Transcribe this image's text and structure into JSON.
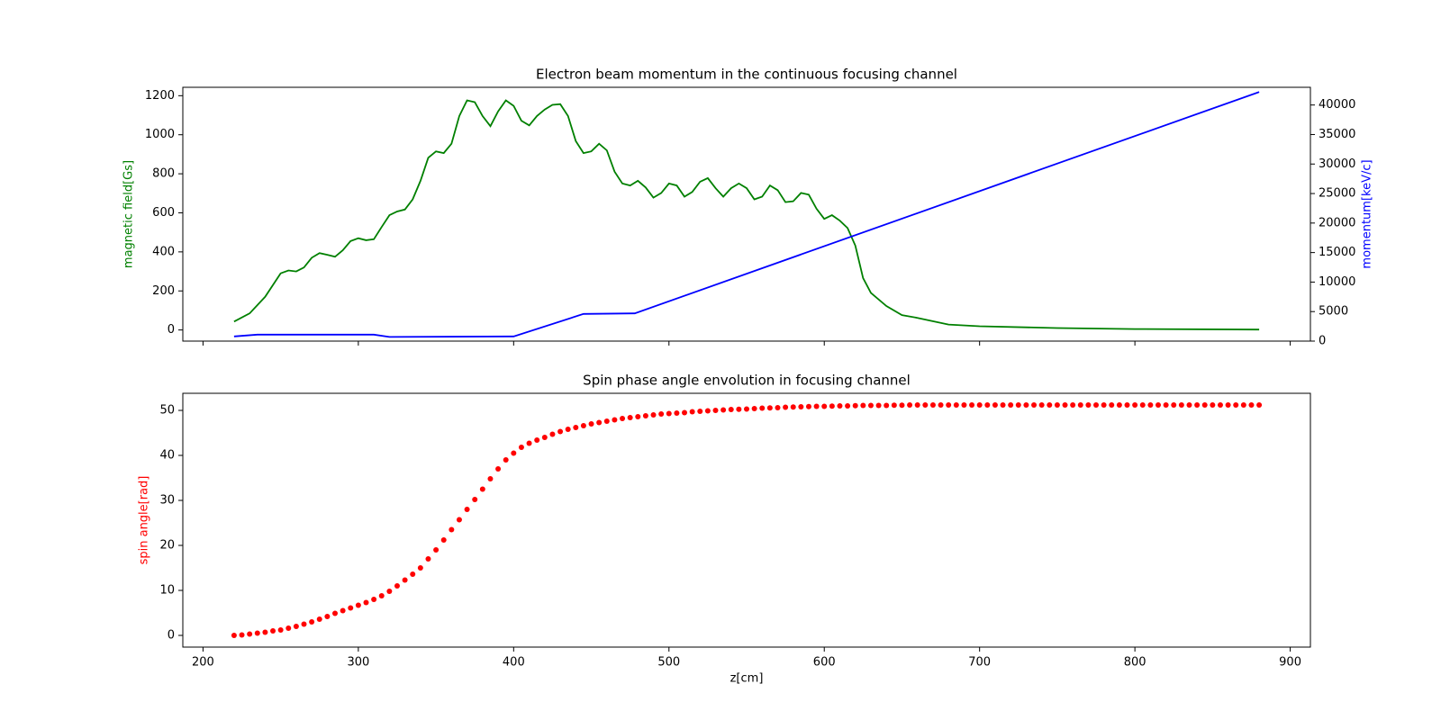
{
  "chart_data": [
    {
      "type": "line",
      "title": "Electron beam momentum in the continuous focusing channel",
      "ylabel": "magnetic field[Gs]",
      "ylabel_color": "green",
      "y2label": "momentum[keV/c]",
      "y2label_color": "blue",
      "xlim": [
        187,
        913
      ],
      "xticks": [
        200,
        300,
        400,
        500,
        600,
        700,
        800,
        900
      ],
      "show_xtick_labels": false,
      "ylim": [
        -57,
        1243
      ],
      "yticks": [
        0,
        200,
        400,
        600,
        800,
        1000,
        1200
      ],
      "y2lim": [
        0,
        43000
      ],
      "y2ticks": [
        0,
        5000,
        10000,
        15000,
        20000,
        25000,
        30000,
        35000,
        40000
      ],
      "series": [
        {
          "color": "green",
          "x": [
            220,
            230,
            240,
            250,
            255,
            260,
            265,
            270,
            275,
            280,
            285,
            290,
            295,
            300,
            305,
            310,
            315,
            320,
            325,
            330,
            335,
            340,
            345,
            350,
            355,
            360,
            365,
            370,
            375,
            380,
            385,
            390,
            395,
            400,
            405,
            410,
            415,
            420,
            425,
            430,
            435,
            440,
            445,
            450,
            455,
            460,
            465,
            470,
            475,
            480,
            485,
            490,
            495,
            500,
            505,
            510,
            515,
            520,
            525,
            530,
            535,
            540,
            545,
            550,
            555,
            560,
            565,
            570,
            575,
            580,
            585,
            590,
            595,
            600,
            605,
            610,
            615,
            620,
            625,
            630,
            640,
            650,
            660,
            680,
            700,
            750,
            800,
            880
          ],
          "values": [
            43,
            85,
            170,
            290,
            305,
            300,
            320,
            370,
            394,
            385,
            375,
            408,
            455,
            470,
            460,
            465,
            527,
            588,
            607,
            617,
            669,
            764,
            882,
            915,
            906,
            954,
            1096,
            1176,
            1167,
            1096,
            1044,
            1120,
            1176,
            1148,
            1072,
            1048,
            1096,
            1129,
            1153,
            1157,
            1096,
            968,
            906,
            915,
            954,
            920,
            811,
            750,
            740,
            764,
            730,
            678,
            702,
            750,
            740,
            683,
            707,
            759,
            778,
            726,
            683,
            726,
            750,
            726,
            669,
            683,
            740,
            716,
            655,
            659,
            702,
            693,
            621,
            569,
            588,
            560,
            522,
            432,
            266,
            190,
            123,
            76,
            62,
            28,
            19,
            10,
            5,
            2
          ]
        },
        {
          "color": "blue",
          "axis": "y2",
          "x": [
            220,
            235,
            310,
            320,
            400,
            445,
            478,
            880
          ],
          "values": [
            800,
            1100,
            1100,
            700,
            800,
            4600,
            4700,
            42200
          ]
        }
      ]
    },
    {
      "type": "scatter",
      "title": "Spin phase angle envolution in focusing channel",
      "xlabel": "z[cm]",
      "ylabel": "spin angle[rad]",
      "ylabel_color": "red",
      "color": "red",
      "xlim": [
        187,
        913
      ],
      "xticks": [
        200,
        300,
        400,
        500,
        600,
        700,
        800,
        900
      ],
      "show_xtick_labels": true,
      "ylim": [
        -2.6,
        53.8
      ],
      "yticks": [
        0,
        10,
        20,
        30,
        40,
        50
      ],
      "x": [
        220,
        225,
        230,
        235,
        240,
        245,
        250,
        255,
        260,
        265,
        270,
        275,
        280,
        285,
        290,
        295,
        300,
        305,
        310,
        315,
        320,
        325,
        330,
        335,
        340,
        345,
        350,
        355,
        360,
        365,
        370,
        375,
        380,
        385,
        390,
        395,
        400,
        405,
        410,
        415,
        420,
        425,
        430,
        435,
        440,
        445,
        450,
        455,
        460,
        465,
        470,
        475,
        480,
        485,
        490,
        495,
        500,
        505,
        510,
        515,
        520,
        525,
        530,
        535,
        540,
        545,
        550,
        555,
        560,
        565,
        570,
        575,
        580,
        585,
        590,
        595,
        600,
        605,
        610,
        615,
        620,
        625,
        630,
        635,
        640,
        645,
        650,
        655,
        660,
        665,
        670,
        675,
        680,
        685,
        690,
        695,
        700,
        705,
        710,
        715,
        720,
        725,
        730,
        735,
        740,
        745,
        750,
        755,
        760,
        765,
        770,
        775,
        780,
        785,
        790,
        795,
        800,
        805,
        810,
        815,
        820,
        825,
        830,
        835,
        840,
        845,
        850,
        855,
        860,
        865,
        870,
        875,
        880
      ],
      "values": [
        0,
        0.1,
        0.3,
        0.5,
        0.7,
        1.0,
        1.2,
        1.6,
        2.0,
        2.5,
        3.0,
        3.6,
        4.2,
        4.9,
        5.5,
        6.1,
        6.7,
        7.3,
        8.0,
        8.8,
        9.8,
        11.0,
        12.3,
        13.6,
        15.0,
        17.0,
        19.0,
        21.2,
        23.5,
        25.7,
        28.0,
        30.2,
        32.5,
        34.8,
        37.0,
        39.0,
        40.5,
        41.8,
        42.7,
        43.4,
        44.0,
        44.7,
        45.3,
        45.8,
        46.2,
        46.6,
        47.0,
        47.3,
        47.6,
        47.9,
        48.2,
        48.4,
        48.6,
        48.8,
        49.0,
        49.2,
        49.3,
        49.4,
        49.5,
        49.7,
        49.8,
        49.9,
        50.0,
        50.1,
        50.2,
        50.25,
        50.3,
        50.4,
        50.5,
        50.55,
        50.6,
        50.7,
        50.75,
        50.8,
        50.85,
        50.9,
        50.9,
        50.95,
        51.0,
        51.0,
        51.05,
        51.1,
        51.1,
        51.1,
        51.1,
        51.15,
        51.15,
        51.2,
        51.2,
        51.2,
        51.2,
        51.2,
        51.2,
        51.2,
        51.2,
        51.2,
        51.2,
        51.2,
        51.2,
        51.2,
        51.2,
        51.2,
        51.2,
        51.2,
        51.2,
        51.2,
        51.2,
        51.2,
        51.2,
        51.2,
        51.2,
        51.2,
        51.2,
        51.2,
        51.2,
        51.2,
        51.2,
        51.2,
        51.2,
        51.2,
        51.2,
        51.2,
        51.2,
        51.2,
        51.2,
        51.2,
        51.2,
        51.2,
        51.2,
        51.2,
        51.2,
        51.2,
        51.2
      ]
    }
  ]
}
